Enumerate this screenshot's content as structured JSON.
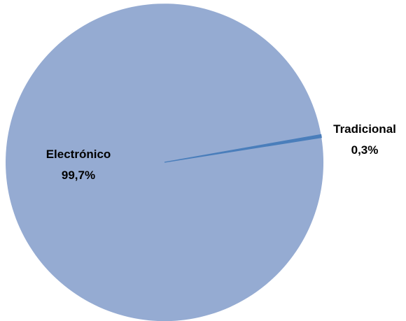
{
  "chart_data": {
    "type": "pie",
    "title": "",
    "slices": [
      {
        "label": "Electrónico",
        "value": 99.7,
        "value_label": "99,7%",
        "color": "#95abd2"
      },
      {
        "label": "Tradicional",
        "value": 0.3,
        "value_label": "0,3%",
        "color": "#4a7ebb"
      }
    ],
    "legend": "none",
    "data_labels": "category-and-percent"
  }
}
